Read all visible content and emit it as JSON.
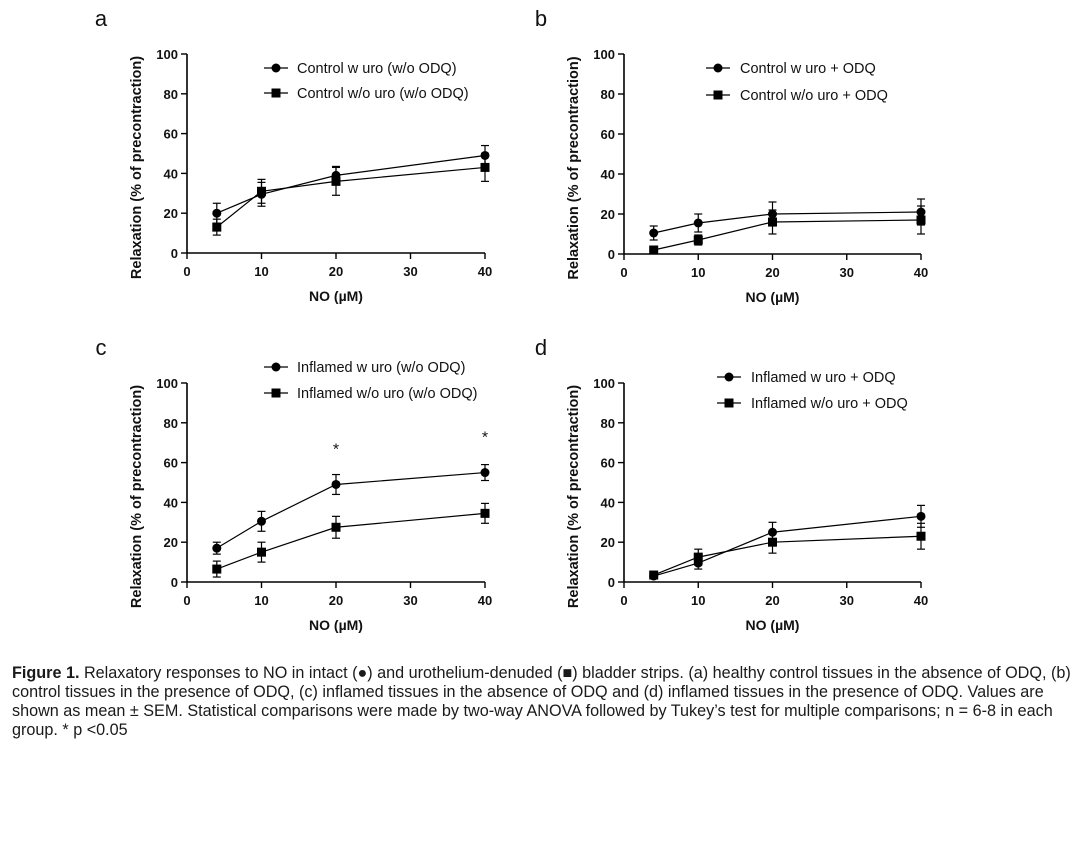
{
  "caption": {
    "label": "Figure 1.",
    "text": " Relaxatory responses to NO in intact (●) and urothelium-denuded (■) bladder strips. (a) healthy control tissues in the absence of ODQ, (b) control tissues in the presence of ODQ, (c) inflamed tissues in the absence of ODQ and (d) inflamed tissues in the presence of ODQ. Values are shown as mean ± SEM. Statistical comparisons were made by two-way ANOVA followed by Tukey’s test for multiple comparisons; n = 6-8 in each group. * p <0.05"
  },
  "chart_data": [
    {
      "panel": "a",
      "type": "line",
      "xlabel": "NO (µM)",
      "ylabel": "Relaxation (% of precontraction)",
      "xlim": [
        0,
        40
      ],
      "ylim": [
        0,
        100
      ],
      "xticks": [
        0,
        10,
        20,
        30,
        40
      ],
      "yticks": [
        0,
        20,
        40,
        60,
        80,
        100
      ],
      "x": [
        4,
        10,
        20,
        40
      ],
      "series": [
        {
          "name": "Control w uro (w/o ODQ)",
          "marker": "circle",
          "values": [
            20,
            29.5,
            39,
            49
          ],
          "sem": [
            5,
            6,
            4.5,
            5
          ]
        },
        {
          "name": "Control w/o uro (w/o ODQ)",
          "marker": "square",
          "values": [
            13,
            31,
            36,
            43
          ],
          "sem": [
            4,
            6,
            7,
            7
          ]
        }
      ],
      "annotations": []
    },
    {
      "panel": "b",
      "type": "line",
      "xlabel": "NO (µM)",
      "ylabel": "Relaxation (% of precontraction)",
      "xlim": [
        0,
        40
      ],
      "ylim": [
        0,
        100
      ],
      "xticks": [
        0,
        10,
        20,
        30,
        40
      ],
      "yticks": [
        0,
        20,
        40,
        60,
        80,
        100
      ],
      "x": [
        4,
        10,
        20,
        40
      ],
      "series": [
        {
          "name": "Control w uro + ODQ",
          "marker": "circle",
          "values": [
            10.5,
            15.5,
            20,
            21
          ],
          "sem": [
            3.5,
            4.5,
            6,
            6.5
          ]
        },
        {
          "name": "Control w/o uro + ODQ",
          "marker": "square",
          "values": [
            2,
            7,
            16,
            17
          ],
          "sem": [
            1,
            2.5,
            6,
            7
          ]
        }
      ],
      "annotations": []
    },
    {
      "panel": "c",
      "type": "line",
      "xlabel": "NO (µM)",
      "ylabel": "Relaxation (% of precontraction)",
      "xlim": [
        0,
        40
      ],
      "ylim": [
        0,
        100
      ],
      "xticks": [
        0,
        10,
        20,
        30,
        40
      ],
      "yticks": [
        0,
        20,
        40,
        60,
        80,
        100
      ],
      "x": [
        4,
        10,
        20,
        40
      ],
      "series": [
        {
          "name": "Inflamed w uro (w/o ODQ)",
          "marker": "circle",
          "values": [
            17,
            30.5,
            49,
            55
          ],
          "sem": [
            3,
            5,
            5,
            4
          ]
        },
        {
          "name": "Inflamed w/o uro (w/o ODQ)",
          "marker": "square",
          "values": [
            6.5,
            15,
            27.5,
            34.5
          ],
          "sem": [
            4,
            5,
            5.5,
            5
          ]
        }
      ],
      "annotations": [
        {
          "x": 20,
          "y": 67,
          "text": "*"
        },
        {
          "x": 40,
          "y": 73,
          "text": "*"
        }
      ]
    },
    {
      "panel": "d",
      "type": "line",
      "xlabel": "NO (µM)",
      "ylabel": "Relaxation (% of precontraction)",
      "xlim": [
        0,
        40
      ],
      "ylim": [
        0,
        100
      ],
      "xticks": [
        0,
        10,
        20,
        30,
        40
      ],
      "yticks": [
        0,
        20,
        40,
        60,
        80,
        100
      ],
      "x": [
        4,
        10,
        20,
        40
      ],
      "series": [
        {
          "name": "Inflamed w uro + ODQ",
          "marker": "circle",
          "values": [
            3,
            9.5,
            25,
            33
          ],
          "sem": [
            1,
            3,
            5,
            5.5
          ]
        },
        {
          "name": "Inflamed w/o uro + ODQ",
          "marker": "square",
          "values": [
            3.5,
            12.5,
            20,
            23
          ],
          "sem": [
            1,
            4,
            5.5,
            6.5
          ]
        }
      ],
      "annotations": []
    }
  ]
}
